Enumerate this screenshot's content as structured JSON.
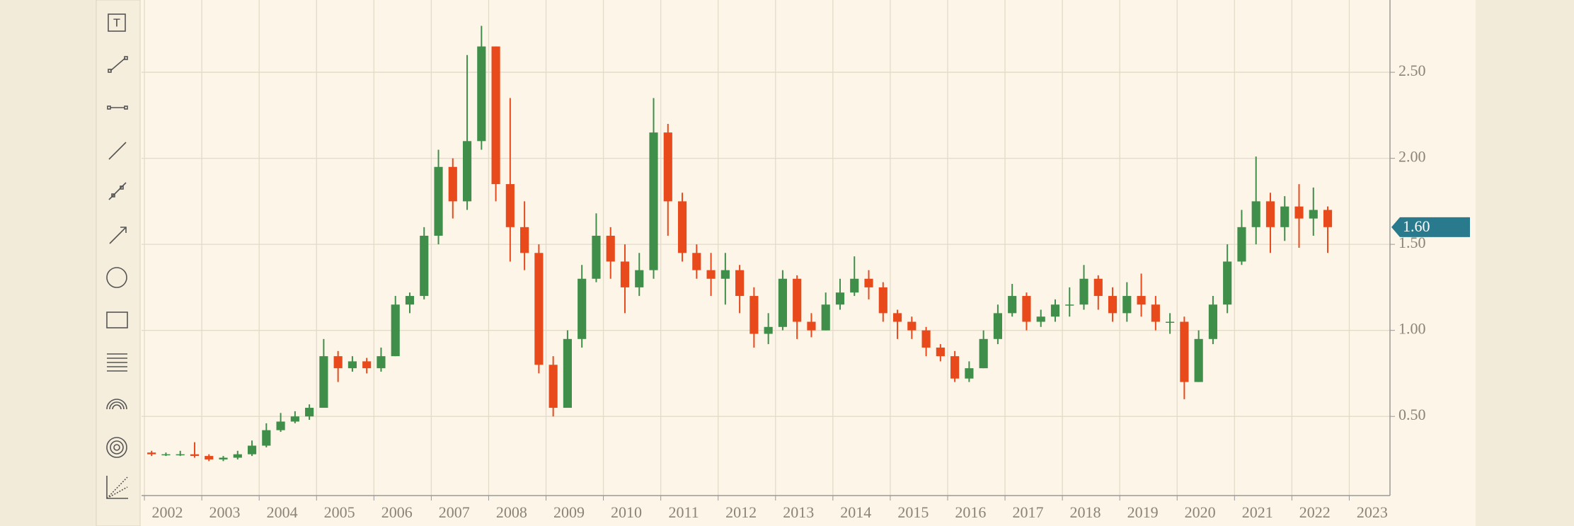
{
  "chart_data": {
    "type": "candlestick",
    "x": [
      2002.125,
      2002.375,
      2002.625,
      2002.875,
      2003.125,
      2003.375,
      2003.625,
      2003.875,
      2004.125,
      2004.375,
      2004.625,
      2004.875,
      2005.125,
      2005.375,
      2005.625,
      2005.875,
      2006.125,
      2006.375,
      2006.625,
      2006.875,
      2007.125,
      2007.375,
      2007.625,
      2007.875,
      2008.125,
      2008.375,
      2008.625,
      2008.875,
      2009.125,
      2009.375,
      2009.625,
      2009.875,
      2010.125,
      2010.375,
      2010.625,
      2010.875,
      2011.125,
      2011.375,
      2011.625,
      2011.875,
      2012.125,
      2012.375,
      2012.625,
      2012.875,
      2013.125,
      2013.375,
      2013.625,
      2013.875,
      2014.125,
      2014.375,
      2014.625,
      2014.875,
      2015.125,
      2015.375,
      2015.625,
      2015.875,
      2016.125,
      2016.375,
      2016.625,
      2016.875,
      2017.125,
      2017.375,
      2017.625,
      2017.875,
      2018.125,
      2018.375,
      2018.625,
      2018.875,
      2019.125,
      2019.375,
      2019.625,
      2019.875,
      2020.125,
      2020.375,
      2020.625,
      2020.875,
      2021.125,
      2021.375,
      2021.625,
      2021.875,
      2022.125,
      2022.375,
      2022.625
    ],
    "open": [
      0.29,
      0.28,
      0.28,
      0.28,
      0.27,
      0.25,
      0.26,
      0.28,
      0.33,
      0.42,
      0.47,
      0.5,
      0.55,
      0.85,
      0.78,
      0.82,
      0.78,
      0.85,
      1.15,
      1.2,
      1.55,
      1.95,
      1.75,
      2.1,
      2.65,
      1.85,
      1.6,
      1.45,
      0.8,
      0.55,
      0.95,
      1.3,
      1.55,
      1.4,
      1.25,
      1.35,
      2.15,
      1.75,
      1.45,
      1.35,
      1.3,
      1.35,
      1.2,
      0.98,
      1.02,
      1.3,
      1.05,
      1.0,
      1.15,
      1.22,
      1.3,
      1.25,
      1.1,
      1.05,
      1.0,
      0.9,
      0.85,
      0.72,
      0.78,
      0.95,
      1.1,
      1.2,
      1.05,
      1.08,
      1.15,
      1.15,
      1.3,
      1.2,
      1.1,
      1.2,
      1.15,
      1.05,
      1.05,
      0.7,
      0.95,
      1.15,
      1.4,
      1.6,
      1.75,
      1.6,
      1.72,
      1.65,
      1.7
    ],
    "high": [
      0.3,
      0.29,
      0.3,
      0.35,
      0.28,
      0.27,
      0.3,
      0.36,
      0.46,
      0.52,
      0.53,
      0.57,
      0.95,
      0.88,
      0.85,
      0.84,
      0.9,
      1.2,
      1.22,
      1.6,
      2.05,
      2.0,
      2.6,
      2.77,
      2.65,
      2.35,
      1.75,
      1.5,
      0.85,
      1.0,
      1.38,
      1.68,
      1.6,
      1.5,
      1.45,
      2.35,
      2.2,
      1.8,
      1.5,
      1.45,
      1.45,
      1.38,
      1.25,
      1.1,
      1.35,
      1.32,
      1.1,
      1.22,
      1.3,
      1.43,
      1.35,
      1.28,
      1.12,
      1.08,
      1.02,
      0.92,
      0.88,
      0.82,
      1.0,
      1.15,
      1.27,
      1.22,
      1.12,
      1.18,
      1.25,
      1.38,
      1.32,
      1.25,
      1.28,
      1.33,
      1.2,
      1.1,
      1.08,
      1.0,
      1.2,
      1.5,
      1.7,
      2.01,
      1.8,
      1.78,
      1.85,
      1.83,
      1.72
    ],
    "low": [
      0.27,
      0.27,
      0.27,
      0.26,
      0.24,
      0.24,
      0.25,
      0.27,
      0.32,
      0.41,
      0.46,
      0.48,
      0.55,
      0.7,
      0.76,
      0.75,
      0.76,
      0.85,
      1.1,
      1.18,
      1.5,
      1.65,
      1.7,
      2.05,
      1.75,
      1.4,
      1.35,
      0.75,
      0.5,
      0.55,
      0.9,
      1.28,
      1.3,
      1.1,
      1.2,
      1.3,
      1.55,
      1.4,
      1.3,
      1.2,
      1.15,
      1.1,
      0.9,
      0.92,
      1.0,
      0.95,
      0.96,
      1.0,
      1.12,
      1.2,
      1.18,
      1.05,
      0.95,
      0.95,
      0.85,
      0.82,
      0.7,
      0.7,
      0.78,
      0.92,
      1.08,
      1.0,
      1.02,
      1.05,
      1.08,
      1.12,
      1.12,
      1.05,
      1.05,
      1.08,
      1.0,
      0.98,
      0.6,
      0.7,
      0.92,
      1.1,
      1.38,
      1.5,
      1.45,
      1.52,
      1.48,
      1.55,
      1.45
    ],
    "close": [
      0.28,
      0.28,
      0.28,
      0.27,
      0.25,
      0.26,
      0.28,
      0.33,
      0.42,
      0.47,
      0.5,
      0.55,
      0.85,
      0.78,
      0.82,
      0.78,
      0.85,
      1.15,
      1.2,
      1.55,
      1.95,
      1.75,
      2.1,
      2.65,
      1.85,
      1.6,
      1.45,
      0.8,
      0.55,
      0.95,
      1.3,
      1.55,
      1.4,
      1.25,
      1.35,
      2.15,
      1.75,
      1.45,
      1.35,
      1.3,
      1.35,
      1.2,
      0.98,
      1.02,
      1.3,
      1.05,
      1.0,
      1.15,
      1.22,
      1.3,
      1.25,
      1.1,
      1.05,
      1.0,
      0.9,
      0.85,
      0.72,
      0.78,
      0.95,
      1.1,
      1.2,
      1.05,
      1.08,
      1.15,
      1.15,
      1.3,
      1.2,
      1.1,
      1.2,
      1.15,
      1.05,
      1.05,
      0.7,
      0.95,
      1.15,
      1.4,
      1.6,
      1.75,
      1.6,
      1.72,
      1.65,
      1.7,
      1.6
    ],
    "up_color": "#3f8f4a",
    "down_color": "#e84a1c",
    "xlim": [
      2001.95,
      2023.71
    ],
    "xticks": [
      2002,
      2003,
      2004,
      2005,
      2006,
      2007,
      2008,
      2009,
      2010,
      2011,
      2012,
      2013,
      2014,
      2015,
      2016,
      2017,
      2018,
      2019,
      2020,
      2021,
      2022,
      2023
    ],
    "ylim": [
      0.04,
      2.92
    ],
    "yticks": [
      {
        "value": 0.5,
        "label": "0.50"
      },
      {
        "value": 1,
        "label": "1.00"
      },
      {
        "value": 1.5,
        "label": "1.50"
      },
      {
        "value": 2,
        "label": "2.00"
      },
      {
        "value": 2.5,
        "label": "2.50"
      }
    ],
    "grid": true,
    "last_price": {
      "value": 1.6,
      "label": "1.60"
    },
    "last_price_color": "#2a7a8e"
  }
}
